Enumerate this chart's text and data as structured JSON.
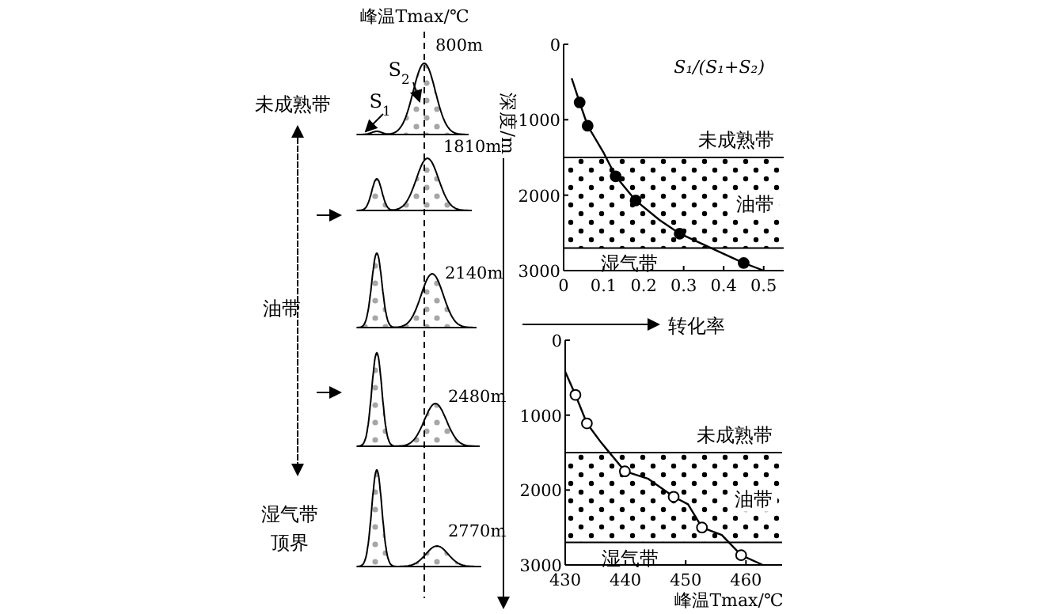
{
  "chart_data": [
    {
      "type": "other",
      "title": "峰温Tmax/℃",
      "annotations": [
        "S$_{1}$",
        "S$_{2}$",
        "800m",
        "1810m",
        "2140m",
        "2480m",
        "2770m",
        "未成熟带",
        "油带",
        "湿气带",
        "顶界"
      ]
    },
    {
      "type": "line",
      "title": "S₁/(S₁+S₂)",
      "xlabel": "转化率",
      "ylabel": "深度/m",
      "xlim": [
        0,
        0.55
      ],
      "xticks": [
        0,
        0.1,
        0.2,
        0.3,
        0.4,
        0.5
      ],
      "ylim": [
        3000,
        0
      ],
      "yticks": [
        0,
        1000,
        2000,
        3000
      ],
      "bands": [
        {
          "axis": "y",
          "from": 1500,
          "to": 2700,
          "label": "油带",
          "color": "#000000"
        }
      ],
      "ref_lines": [
        {
          "axis": "y",
          "value": 1500,
          "label": "未成熟带"
        },
        {
          "axis": "y",
          "value": 2700,
          "label": "湿气带"
        }
      ],
      "series": [
        {
          "type": "line",
          "color": "#000000",
          "marker": "none",
          "x": [
            0.02,
            0.04,
            0.06,
            0.1,
            0.13,
            0.18,
            0.24,
            0.29,
            0.38,
            0.45,
            0.5
          ],
          "values": [
            450,
            770,
            1080,
            1440,
            1750,
            2070,
            2330,
            2510,
            2730,
            2900,
            3000
          ]
        },
        {
          "type": "scatter",
          "color": "#000000",
          "marker": "circle",
          "x": [
            0.04,
            0.06,
            0.13,
            0.18,
            0.29,
            0.45
          ],
          "values": [
            770,
            1080,
            1750,
            2070,
            2510,
            2900
          ]
        }
      ]
    },
    {
      "type": "line",
      "xlabel": "峰温Tmax/℃",
      "xlim": [
        430,
        466
      ],
      "xticks": [
        430,
        440,
        450,
        460
      ],
      "ylim": [
        3000,
        0
      ],
      "yticks": [
        0,
        1000,
        2000,
        3000
      ],
      "bands": [
        {
          "axis": "y",
          "from": 1500,
          "to": 2700,
          "label": "油带",
          "color": "#000000"
        }
      ],
      "ref_lines": [
        {
          "axis": "y",
          "value": 1500,
          "label": "未成熟带"
        },
        {
          "axis": "y",
          "value": 2700,
          "label": "湿气带"
        }
      ],
      "series": [
        {
          "type": "line",
          "color": "#000000",
          "marker": "none",
          "x": [
            430,
            431.7,
            433.6,
            436,
            439.9,
            443.8,
            448,
            450.4,
            452.7,
            456,
            459.2,
            462.8
          ],
          "values": [
            420,
            730,
            1110,
            1370,
            1750,
            1850,
            2090,
            2190,
            2500,
            2600,
            2870,
            3000
          ]
        },
        {
          "type": "scatter",
          "color": "#ffffff",
          "marker": "circle",
          "x": [
            431.7,
            433.6,
            439.9,
            448,
            452.7,
            459.2
          ],
          "values": [
            730,
            1110,
            1750,
            2090,
            2500,
            2870
          ]
        }
      ]
    }
  ]
}
